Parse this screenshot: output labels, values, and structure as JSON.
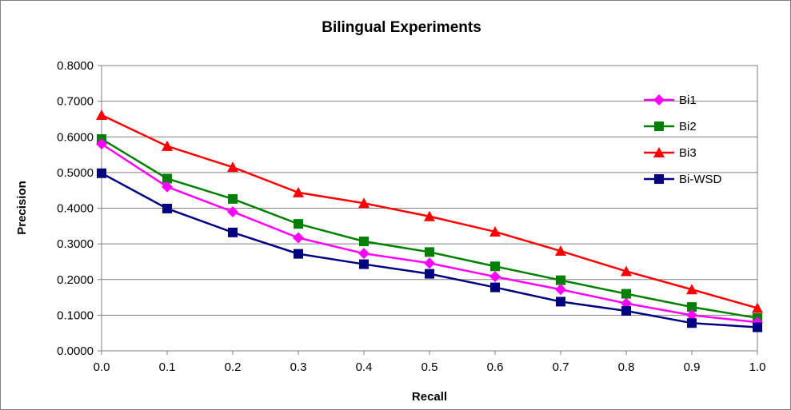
{
  "chart_data": {
    "type": "line",
    "title": "Bilingual Experiments",
    "xlabel": "Recall",
    "ylabel": "Precision",
    "x": [
      0.0,
      0.1,
      0.2,
      0.3,
      0.4,
      0.5,
      0.6,
      0.7,
      0.8,
      0.9,
      1.0
    ],
    "x_tick_labels": [
      "0.0",
      "0.1",
      "0.2",
      "0.3",
      "0.4",
      "0.5",
      "0.6",
      "0.7",
      "0.8",
      "0.9",
      "1.0"
    ],
    "y_ticks": [
      0,
      0.1,
      0.2,
      0.3,
      0.4,
      0.5,
      0.6,
      0.7,
      0.8
    ],
    "y_tick_labels": [
      "0.0000",
      "0.1000",
      "0.2000",
      "0.3000",
      "0.4000",
      "0.5000",
      "0.6000",
      "0.7000",
      "0.8000"
    ],
    "xlim": [
      0,
      1
    ],
    "ylim": [
      0,
      0.8
    ],
    "grid": "horizontal",
    "legend_position": "right",
    "series": [
      {
        "name": "Bi1",
        "color": "#ff00ff",
        "marker": "diamond",
        "values": [
          0.58,
          0.46,
          0.39,
          0.317,
          0.273,
          0.246,
          0.208,
          0.172,
          0.133,
          0.1,
          0.08
        ]
      },
      {
        "name": "Bi2",
        "color": "#008000",
        "marker": "square",
        "values": [
          0.594,
          0.483,
          0.426,
          0.356,
          0.307,
          0.277,
          0.237,
          0.198,
          0.16,
          0.123,
          0.092
        ]
      },
      {
        "name": "Bi3",
        "color": "#ff0000",
        "marker": "triangle",
        "values": [
          0.661,
          0.574,
          0.515,
          0.444,
          0.414,
          0.377,
          0.334,
          0.28,
          0.223,
          0.172,
          0.12
        ]
      },
      {
        "name": "Bi-WSD",
        "color": "#000080",
        "marker": "square",
        "values": [
          0.498,
          0.399,
          0.332,
          0.272,
          0.243,
          0.216,
          0.178,
          0.138,
          0.112,
          0.078,
          0.066
        ]
      }
    ]
  }
}
